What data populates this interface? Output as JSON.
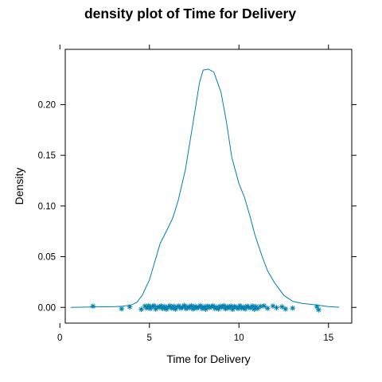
{
  "chart_data": {
    "type": "line",
    "title": "density plot of Time for Delivery",
    "xlabel": "Time for Delivery",
    "ylabel": "Density",
    "xlim": [
      0.3,
      16.3
    ],
    "ylim": [
      -0.0155,
      0.2545
    ],
    "x_ticks": [
      0,
      5,
      10,
      15
    ],
    "y_ticks": [
      0.0,
      0.05,
      0.1,
      0.15,
      0.2
    ],
    "y_tick_labels": [
      "0.00",
      "0.05",
      "0.10",
      "0.15",
      "0.20"
    ],
    "grid": false,
    "color": "#0080b0",
    "series": [
      {
        "kind": "density",
        "x": [
          0.6,
          1.5,
          2.5,
          3.0,
          3.5,
          4.0,
          4.3,
          4.6,
          5.0,
          5.3,
          5.6,
          6.0,
          6.3,
          6.6,
          7.0,
          7.4,
          7.8,
          8.0,
          8.3,
          8.6,
          9.0,
          9.3,
          9.6,
          10.0,
          10.3,
          10.6,
          10.9,
          11.3,
          11.6,
          12.0,
          12.5,
          13.0,
          13.5,
          14.0,
          14.5,
          15.0,
          15.6
        ],
        "y": [
          0.0,
          0.0003,
          0.0006,
          0.0007,
          0.0012,
          0.0025,
          0.005,
          0.012,
          0.027,
          0.045,
          0.063,
          0.077,
          0.088,
          0.105,
          0.135,
          0.178,
          0.222,
          0.234,
          0.235,
          0.232,
          0.212,
          0.183,
          0.148,
          0.122,
          0.109,
          0.091,
          0.071,
          0.05,
          0.036,
          0.024,
          0.012,
          0.006,
          0.004,
          0.003,
          0.002,
          0.0008,
          0.0001
        ]
      },
      {
        "kind": "rug",
        "x": [
          1.85,
          3.45,
          3.9,
          4.55,
          4.75,
          4.85,
          4.95,
          5.05,
          5.15,
          5.25,
          5.35,
          5.45,
          5.55,
          5.65,
          5.75,
          5.85,
          5.95,
          6.05,
          6.15,
          6.25,
          6.35,
          6.45,
          6.55,
          6.65,
          6.75,
          6.85,
          6.95,
          7.05,
          7.15,
          7.25,
          7.35,
          7.45,
          7.55,
          7.65,
          7.75,
          7.85,
          7.95,
          8.05,
          8.15,
          8.25,
          8.35,
          8.45,
          8.55,
          8.65,
          8.75,
          8.85,
          8.95,
          9.05,
          9.15,
          9.25,
          9.35,
          9.45,
          9.55,
          9.65,
          9.75,
          9.85,
          9.95,
          10.05,
          10.15,
          10.25,
          10.35,
          10.45,
          10.55,
          10.65,
          10.75,
          10.85,
          10.95,
          11.05,
          11.2,
          11.4,
          11.6,
          11.9,
          12.1,
          12.4,
          12.6,
          13.0,
          14.35,
          14.45
        ],
        "y": [
          0.0012,
          -0.0014,
          0.0005,
          -0.0019,
          0.0013,
          -0.0006,
          0.0016,
          -0.0012,
          0.0008,
          0.0017,
          -0.0016,
          0.0006,
          -0.0002,
          0.0015,
          -0.0011,
          0.0009,
          -0.0018,
          0.0003,
          0.0016,
          -0.0009,
          0.0012,
          -0.0017,
          0.0004,
          0.0014,
          -0.0008,
          0.0001,
          0.0018,
          -0.0013,
          0.0007,
          -0.0004,
          0.0016,
          -0.0015,
          0.001,
          -0.0007,
          0.0002,
          0.0017,
          -0.0012,
          0.0006,
          -0.0018,
          0.0013,
          -0.0003,
          0.0008,
          0.0015,
          -0.001,
          0.0004,
          -0.0016,
          0.0011,
          0.0,
          0.0017,
          -0.0014,
          0.0007,
          -0.0006,
          0.0013,
          -0.0019,
          0.0009,
          0.0003,
          -0.0012,
          0.0016,
          -0.0008,
          0.0005,
          -0.0015,
          0.0012,
          0.0001,
          -0.0005,
          0.0014,
          -0.0017,
          0.0008,
          -0.0011,
          0.001,
          0.0015,
          -0.0009,
          0.0013,
          -0.0003,
          0.0006,
          -0.0015,
          -0.0007,
          0.0008,
          -0.0024
        ]
      }
    ]
  }
}
